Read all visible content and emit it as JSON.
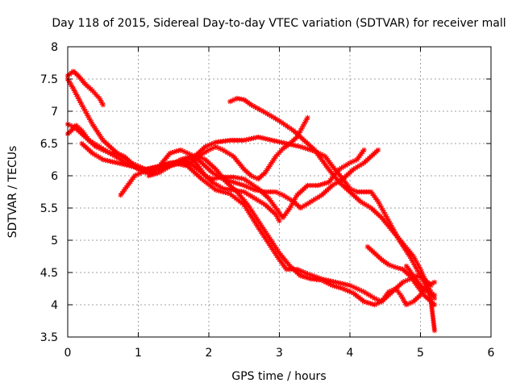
{
  "chart_data": {
    "type": "scatter",
    "title": "Day 118 of 2015, Sidereal Day-to-day VTEC variation (SDTVAR) for receiver mall",
    "xlabel": "GPS time / hours",
    "ylabel": "SDTVAR / TECUs",
    "xlim": [
      0,
      6
    ],
    "ylim": [
      3.5,
      8
    ],
    "xticks": [
      "0",
      "1",
      "2",
      "3",
      "4",
      "5",
      "6"
    ],
    "yticks": [
      "3.5",
      "4",
      "4.5",
      "5",
      "5.5",
      "6",
      "6.5",
      "7",
      "7.5",
      "8"
    ],
    "grid": true,
    "marker": "star",
    "color": "#ff0000",
    "series": [
      {
        "x": [
          0.0,
          0.08,
          0.15,
          0.25,
          0.35,
          0.45,
          0.5
        ],
        "y": [
          7.55,
          7.62,
          7.55,
          7.42,
          7.32,
          7.2,
          7.1
        ]
      },
      {
        "x": [
          0.0,
          0.08,
          0.2,
          0.35,
          0.5,
          0.7,
          0.9,
          1.1,
          1.3,
          1.5,
          1.7,
          1.9,
          2.1,
          2.3,
          2.5,
          2.7,
          2.85,
          3.0,
          3.1,
          3.25,
          3.4,
          3.6,
          3.8,
          4.0,
          4.2,
          4.35,
          4.45,
          4.55,
          4.65,
          4.72,
          4.8,
          4.9,
          5.0,
          5.1,
          5.2
        ],
        "y": [
          7.5,
          7.35,
          7.1,
          6.8,
          6.55,
          6.35,
          6.2,
          6.1,
          6.1,
          6.2,
          6.15,
          5.95,
          5.78,
          5.72,
          5.55,
          5.2,
          4.95,
          4.7,
          4.55,
          4.55,
          4.48,
          4.4,
          4.35,
          4.3,
          4.2,
          4.1,
          4.05,
          4.2,
          4.25,
          4.15,
          4.0,
          4.05,
          4.15,
          4.3,
          4.35
        ]
      },
      {
        "x": [
          0.0,
          0.05,
          0.12,
          0.2,
          0.3,
          0.4,
          0.5,
          0.6,
          0.7,
          0.8,
          0.9,
          1.0,
          1.1,
          1.2,
          1.3,
          1.45,
          1.6,
          1.7,
          1.8,
          1.9,
          2.05,
          2.2,
          2.35,
          2.5,
          2.65,
          2.8,
          2.95,
          3.05,
          3.2,
          3.3,
          3.45,
          3.6,
          3.75,
          3.9,
          4.05,
          4.2,
          4.3,
          4.4
        ],
        "y": [
          6.65,
          6.7,
          6.78,
          6.7,
          6.55,
          6.45,
          6.4,
          6.35,
          6.35,
          6.3,
          6.2,
          6.1,
          6.05,
          6.05,
          6.15,
          6.35,
          6.4,
          6.35,
          6.3,
          6.2,
          6.05,
          5.95,
          5.9,
          5.85,
          5.78,
          5.75,
          5.75,
          5.7,
          5.6,
          5.5,
          5.6,
          5.7,
          5.85,
          5.95,
          6.1,
          6.2,
          6.3,
          6.4
        ]
      },
      {
        "x": [
          0.0,
          0.1,
          0.2,
          0.3,
          0.45,
          0.6,
          0.75,
          0.9,
          1.05,
          1.2,
          1.4,
          1.6,
          1.8,
          1.95,
          2.1,
          2.3,
          2.5,
          2.7,
          2.9,
          3.1,
          3.3,
          3.5,
          3.65,
          3.75,
          3.9,
          4.0,
          4.1,
          4.2,
          4.3,
          4.4,
          4.55,
          4.7,
          4.85,
          4.95,
          5.05,
          5.15,
          5.2
        ],
        "y": [
          6.8,
          6.75,
          6.65,
          6.55,
          6.45,
          6.35,
          6.25,
          6.15,
          6.1,
          6.1,
          6.15,
          6.2,
          6.3,
          6.45,
          6.52,
          6.55,
          6.55,
          6.6,
          6.55,
          6.5,
          6.45,
          6.38,
          6.3,
          6.15,
          5.95,
          5.8,
          5.75,
          5.75,
          5.75,
          5.6,
          5.3,
          5.0,
          4.75,
          4.55,
          4.35,
          4.2,
          4.1
        ]
      },
      {
        "x": [
          2.3,
          2.4,
          2.5,
          2.6,
          2.8,
          3.0,
          3.2,
          3.35,
          3.5,
          3.6,
          3.7,
          3.85,
          4.0,
          4.15,
          4.3,
          4.45,
          4.6,
          4.75,
          4.9,
          5.0,
          5.1,
          5.15,
          5.2
        ],
        "y": [
          7.15,
          7.2,
          7.18,
          7.1,
          6.98,
          6.85,
          6.7,
          6.55,
          6.4,
          6.25,
          6.1,
          5.9,
          5.75,
          5.6,
          5.5,
          5.35,
          5.15,
          4.95,
          4.75,
          4.55,
          4.3,
          4.05,
          3.6
        ]
      },
      {
        "x": [
          0.75,
          0.85,
          0.95,
          1.05,
          1.15,
          1.3,
          1.45,
          1.6,
          1.75,
          1.85,
          2.0,
          2.1,
          2.2,
          2.35,
          2.5,
          2.6,
          2.7,
          2.8,
          2.95,
          3.05,
          3.15,
          3.25,
          3.4
        ],
        "y": [
          5.7,
          5.85,
          6.0,
          6.05,
          6.1,
          6.15,
          6.2,
          6.22,
          6.2,
          6.3,
          6.4,
          6.45,
          6.4,
          6.3,
          6.1,
          6.0,
          5.95,
          6.05,
          6.3,
          6.42,
          6.5,
          6.6,
          6.9
        ]
      },
      {
        "x": [
          1.15,
          1.3,
          1.45,
          1.6,
          1.75,
          1.85,
          1.95,
          2.05,
          2.2,
          2.35,
          2.5,
          2.7,
          2.85,
          2.95,
          3.05,
          3.15,
          3.25,
          3.4,
          3.55,
          3.7,
          3.85,
          4.0,
          4.1,
          4.2
        ],
        "y": [
          6.0,
          6.05,
          6.15,
          6.25,
          6.3,
          6.15,
          6.0,
          5.95,
          5.98,
          5.98,
          5.95,
          5.8,
          5.65,
          5.5,
          5.35,
          5.5,
          5.7,
          5.85,
          5.85,
          5.9,
          6.1,
          6.2,
          6.25,
          6.4
        ]
      },
      {
        "x": [
          0.2,
          0.35,
          0.5,
          0.7,
          0.9,
          1.1,
          1.3,
          1.5,
          1.7,
          1.85,
          1.95,
          2.1,
          2.25,
          2.4,
          2.55,
          2.7,
          2.85,
          3.0,
          3.15,
          3.3,
          3.45,
          3.6,
          3.75,
          3.9,
          4.05,
          4.2,
          4.35,
          4.45,
          4.6,
          4.75,
          4.85,
          4.95,
          5.05,
          5.15
        ],
        "y": [
          6.5,
          6.35,
          6.25,
          6.2,
          6.15,
          6.1,
          6.15,
          6.2,
          6.25,
          6.3,
          6.25,
          6.1,
          5.9,
          5.75,
          5.55,
          5.3,
          5.05,
          4.8,
          4.6,
          4.45,
          4.4,
          4.38,
          4.3,
          4.25,
          4.18,
          4.05,
          4.0,
          4.05,
          4.2,
          4.35,
          4.4,
          4.45,
          4.4,
          4.3
        ]
      },
      {
        "x": [
          1.3,
          1.45,
          1.6,
          1.75,
          1.9,
          2.05,
          2.2,
          2.35,
          2.5,
          2.65,
          2.8,
          2.95,
          3.0
        ],
        "y": [
          6.1,
          6.15,
          6.2,
          6.18,
          6.05,
          5.9,
          5.8,
          5.78,
          5.75,
          5.65,
          5.55,
          5.4,
          5.3
        ]
      },
      {
        "x": [
          4.25,
          4.35,
          4.45,
          4.55,
          4.65,
          4.75,
          4.85,
          4.95,
          5.05,
          5.15,
          5.2
        ],
        "y": [
          4.9,
          4.8,
          4.7,
          4.62,
          4.58,
          4.55,
          4.45,
          4.3,
          4.15,
          4.05,
          4.0
        ]
      },
      {
        "x": [
          4.8,
          4.9,
          5.0,
          5.1,
          5.2
        ],
        "y": [
          4.6,
          4.45,
          4.3,
          4.2,
          4.15
        ]
      }
    ]
  }
}
